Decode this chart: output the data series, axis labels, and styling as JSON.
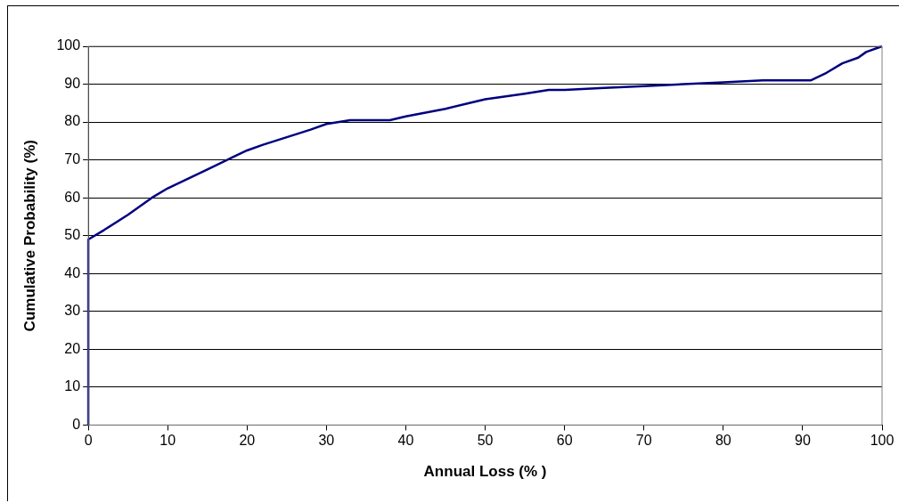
{
  "chart_data": {
    "type": "line",
    "xlabel": "Annual Loss (% )",
    "ylabel": "Cumulative Probability (%)",
    "xlim": [
      0,
      100
    ],
    "xticks": [
      0,
      10,
      20,
      30,
      40,
      50,
      60,
      70,
      80,
      90,
      100
    ],
    "ylim": [
      0,
      100
    ],
    "yticks": [
      0,
      10,
      20,
      30,
      40,
      50,
      60,
      70,
      80,
      90,
      100
    ],
    "grid": "y",
    "legend": false,
    "marker": "none",
    "line_style": "solid",
    "series": [
      {
        "color": "#000080",
        "x": [
          0,
          0,
          2,
          5,
          8,
          10,
          13,
          15,
          18,
          20,
          22,
          25,
          28,
          30,
          33,
          35,
          38,
          40,
          45,
          48,
          50,
          55,
          58,
          60,
          65,
          70,
          75,
          80,
          85,
          88,
          90,
          91,
          93,
          95,
          97,
          98,
          100
        ],
        "values": [
          0,
          49,
          51.5,
          55.5,
          60,
          62.5,
          65.5,
          67.5,
          70.5,
          72.5,
          74,
          76,
          78,
          79.5,
          80.5,
          80.5,
          80.5,
          81.5,
          83.5,
          85,
          86,
          87.5,
          88.5,
          88.5,
          89,
          89.5,
          90,
          90.5,
          91,
          91,
          91,
          91,
          93,
          95.5,
          97,
          98.5,
          100
        ]
      }
    ]
  }
}
